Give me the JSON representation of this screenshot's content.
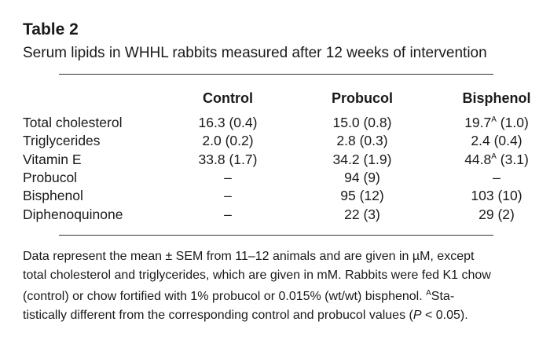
{
  "table": {
    "label": "Table 2",
    "caption": "Serum lipids in WHHL rabbits measured after 12 weeks of intervention",
    "columns": [
      "Control",
      "Probucol",
      "Bisphenol"
    ],
    "rows": [
      {
        "label": "Total cholesterol",
        "cells": [
          {
            "v": "16.3 (0.4)"
          },
          {
            "v": "15.0 (0.8)"
          },
          {
            "main": "19.7",
            "sup": "A",
            "rest": " (1.0)"
          }
        ]
      },
      {
        "label": "Triglycerides",
        "cells": [
          {
            "v": "2.0 (0.2)"
          },
          {
            "v": "2.8 (0.3)"
          },
          {
            "v": "2.4 (0.4)"
          }
        ]
      },
      {
        "label": "Vitamin E",
        "cells": [
          {
            "v": "33.8 (1.7)"
          },
          {
            "v": "34.2 (1.9)"
          },
          {
            "main": "44.8",
            "sup": "A",
            "rest": " (3.1)"
          }
        ]
      },
      {
        "label": "Probucol",
        "cells": [
          {
            "v": "–"
          },
          {
            "v": "94 (9)"
          },
          {
            "v": "–"
          }
        ]
      },
      {
        "label": "Bisphenol",
        "cells": [
          {
            "v": "–"
          },
          {
            "v": "95 (12)"
          },
          {
            "v": "103 (10)"
          }
        ]
      },
      {
        "label": "Diphenoquinone",
        "cells": [
          {
            "v": "–"
          },
          {
            "v": "22 (3)"
          },
          {
            "v": "29 (2)"
          }
        ]
      }
    ]
  },
  "footnote": {
    "line1": "Data represent the mean ± SEM from 11–12 animals and are given in µM, except",
    "line2": "total cholesterol and triglycerides, which are given in mM. Rabbits were fed K1 chow",
    "line3a": "(control) or chow fortified with 1% probucol or 0.015% (wt/wt) bisphenol. ",
    "line3sup": "A",
    "line3b": "Sta-",
    "line4a": "tistically different from the corresponding control and probucol values (",
    "line4p": "P",
    "line4b": " < 0.05)."
  }
}
